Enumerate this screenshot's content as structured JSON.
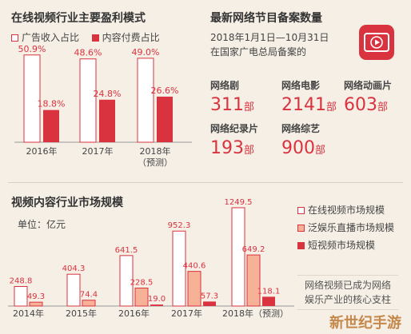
{
  "colors": {
    "bg": "#f5efe6",
    "red": "#d9333f",
    "salmon": "#f7b196",
    "white_bar": "#ffffff",
    "outline": "#d9333f",
    "divider": "#d8cfc4"
  },
  "icons": [
    "video-play-icon"
  ],
  "watermark": "新世纪手游",
  "panel_profit": {
    "chart_data": {
      "type": "bar",
      "title": "在线视频行业主要盈利模式",
      "categories": [
        "2016年",
        "2017年",
        "2018年\n（预测）"
      ],
      "category_lines": [
        [
          "2016年"
        ],
        [
          "2017年"
        ],
        [
          "2018年",
          "（预测）"
        ]
      ],
      "series": [
        {
          "name": "广告收入占比",
          "values": [
            50.9,
            48.6,
            49.0
          ],
          "labels": [
            "50.9%",
            "48.6%",
            "49.0%"
          ],
          "color": "#ffffff"
        },
        {
          "name": "内容付费占比",
          "values": [
            18.8,
            24.8,
            26.6
          ],
          "labels": [
            "18.8%",
            "24.8%",
            "26.6%"
          ],
          "color": "#d9333f"
        }
      ],
      "ylim": [
        0,
        55
      ],
      "grid": false,
      "legend": "top-left"
    }
  },
  "panel_records": {
    "title": "最新网络节目备案数量",
    "subtitle_lines": [
      "2018年1月1日—10月31日",
      "在国家广电总局备案的"
    ],
    "unit": "部",
    "items": [
      {
        "label": "网络剧",
        "value": "311"
      },
      {
        "label": "网络电影",
        "value": "2141"
      },
      {
        "label": "网络动画片",
        "value": "603"
      },
      {
        "label": "网络纪录片",
        "value": "193"
      },
      {
        "label": "网络综艺",
        "value": "900"
      }
    ]
  },
  "panel_market": {
    "unit_label": "单位：亿元",
    "note_lines": [
      "网络视频已成为网络",
      "娱乐产业的核心支柱"
    ],
    "chart_data": {
      "type": "bar",
      "title": "视频内容行业市场规模",
      "categories": [
        "2014年",
        "2015年",
        "2016年",
        "2017年",
        "2018年（预测）"
      ],
      "series": [
        {
          "name": "在线视频市场规模",
          "values": [
            248.8,
            404.3,
            641.5,
            952.3,
            1249.5
          ],
          "labels": [
            "248.8",
            "404.3",
            "641.5",
            "952.3",
            "1249.5"
          ],
          "color": "#ffffff"
        },
        {
          "name": "泛娱乐直播市场规模",
          "values": [
            49.3,
            74.4,
            228.5,
            440.6,
            649.2
          ],
          "labels": [
            "49.3",
            "74.4",
            "228.5",
            "440.6",
            "649.2"
          ],
          "color": "#f7b196"
        },
        {
          "name": "短视频市场规模",
          "values": [
            0,
            0,
            19.0,
            57.3,
            118.1
          ],
          "labels": [
            "",
            "",
            "19.0",
            "57.3",
            "118.1"
          ],
          "color": "#d9333f"
        }
      ],
      "ylim": [
        0,
        1300
      ],
      "grid": false,
      "legend": "top-right"
    }
  }
}
